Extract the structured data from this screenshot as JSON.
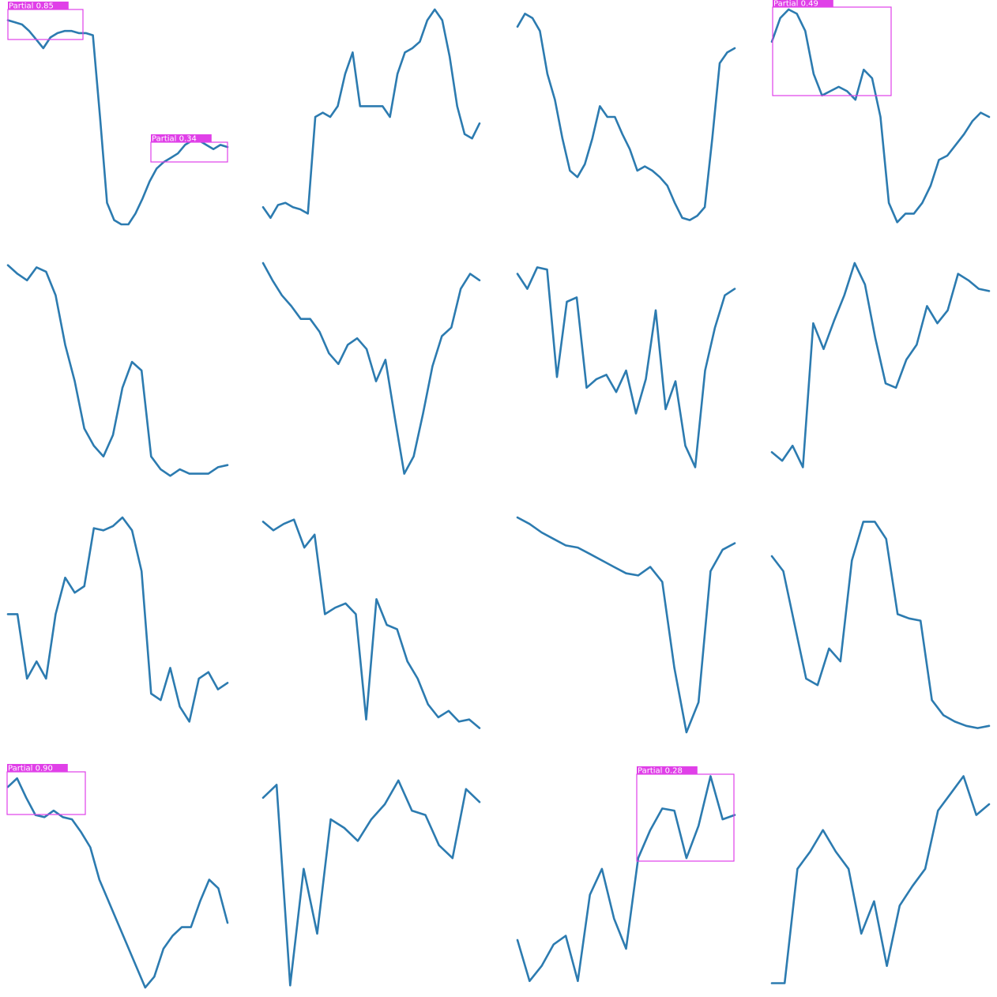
{
  "colors": {
    "series": "#2c7bb0",
    "detection": "#e040e8",
    "background": "#ffffff"
  },
  "chart_data": [
    {
      "type": "line",
      "y": [
        0.95,
        0.94,
        0.93,
        0.9,
        0.86,
        0.82,
        0.87,
        0.89,
        0.9,
        0.9,
        0.89,
        0.89,
        0.88,
        0.5,
        0.1,
        0.02,
        0.0,
        0.0,
        0.05,
        0.12,
        0.2,
        0.26,
        0.29,
        0.31,
        0.33,
        0.37,
        0.39,
        0.39,
        0.37,
        0.35,
        0.37,
        0.36
      ],
      "detections": [
        {
          "label": "Partial  0.85",
          "score": 0.85
        },
        {
          "label": "Partial  0.34",
          "score": 0.34
        }
      ]
    },
    {
      "type": "line",
      "y": [
        0.08,
        0.03,
        0.09,
        0.1,
        0.08,
        0.07,
        0.05,
        0.5,
        0.52,
        0.5,
        0.55,
        0.7,
        0.8,
        0.55,
        0.55,
        0.55,
        0.55,
        0.5,
        0.7,
        0.8,
        0.82,
        0.85,
        0.95,
        1.0,
        0.95,
        0.78,
        0.55,
        0.42,
        0.4,
        0.47
      ]
    },
    {
      "type": "line",
      "y": [
        0.92,
        0.98,
        0.96,
        0.9,
        0.7,
        0.58,
        0.4,
        0.25,
        0.22,
        0.28,
        0.4,
        0.55,
        0.5,
        0.5,
        0.42,
        0.35,
        0.25,
        0.27,
        0.25,
        0.22,
        0.18,
        0.1,
        0.03,
        0.02,
        0.04,
        0.08,
        0.4,
        0.75,
        0.8,
        0.82
      ]
    },
    {
      "type": "line",
      "y": [
        0.85,
        0.96,
        1.0,
        0.98,
        0.9,
        0.7,
        0.6,
        0.62,
        0.64,
        0.62,
        0.58,
        0.72,
        0.68,
        0.5,
        0.1,
        0.01,
        0.05,
        0.05,
        0.1,
        0.18,
        0.3,
        0.32,
        0.37,
        0.42,
        0.48,
        0.52,
        0.5
      ],
      "detections": [
        {
          "label": "Partial  0.49",
          "score": 0.49
        }
      ]
    },
    {
      "type": "line",
      "y": [
        0.99,
        0.95,
        0.92,
        0.98,
        0.96,
        0.85,
        0.62,
        0.45,
        0.23,
        0.15,
        0.1,
        0.2,
        0.42,
        0.54,
        0.5,
        0.1,
        0.04,
        0.01,
        0.04,
        0.02,
        0.02,
        0.02,
        0.05,
        0.06
      ]
    },
    {
      "type": "line",
      "y": [
        1.0,
        0.92,
        0.85,
        0.8,
        0.74,
        0.74,
        0.68,
        0.58,
        0.53,
        0.62,
        0.65,
        0.6,
        0.45,
        0.55,
        0.28,
        0.02,
        0.1,
        0.3,
        0.52,
        0.66,
        0.7,
        0.88,
        0.95,
        0.92
      ]
    },
    {
      "type": "line",
      "y": [
        0.95,
        0.88,
        0.98,
        0.97,
        0.47,
        0.82,
        0.84,
        0.42,
        0.46,
        0.48,
        0.4,
        0.5,
        0.3,
        0.46,
        0.78,
        0.32,
        0.45,
        0.15,
        0.05,
        0.5,
        0.7,
        0.85,
        0.88
      ]
    },
    {
      "type": "line",
      "y": [
        0.12,
        0.08,
        0.15,
        0.05,
        0.72,
        0.6,
        0.73,
        0.85,
        1.0,
        0.9,
        0.65,
        0.44,
        0.42,
        0.55,
        0.62,
        0.8,
        0.72,
        0.78,
        0.95,
        0.92,
        0.88,
        0.87
      ]
    },
    {
      "type": "line",
      "y": [
        0.55,
        0.55,
        0.25,
        0.33,
        0.25,
        0.55,
        0.72,
        0.65,
        0.68,
        0.95,
        0.94,
        0.96,
        1.0,
        0.94,
        0.75,
        0.18,
        0.15,
        0.3,
        0.12,
        0.05,
        0.25,
        0.28,
        0.2,
        0.23
      ]
    },
    {
      "type": "line",
      "y": [
        0.98,
        0.94,
        0.97,
        0.99,
        0.86,
        0.92,
        0.55,
        0.58,
        0.6,
        0.55,
        0.06,
        0.62,
        0.5,
        0.48,
        0.33,
        0.25,
        0.13,
        0.07,
        0.1,
        0.05,
        0.06,
        0.02
      ]
    },
    {
      "type": "line",
      "y": [
        1.0,
        0.97,
        0.93,
        0.9,
        0.87,
        0.86,
        0.83,
        0.8,
        0.77,
        0.74,
        0.73,
        0.77,
        0.7,
        0.3,
        0.0,
        0.14,
        0.75,
        0.85,
        0.88
      ]
    },
    {
      "type": "line",
      "y": [
        0.82,
        0.75,
        0.5,
        0.25,
        0.22,
        0.39,
        0.33,
        0.8,
        0.98,
        0.98,
        0.9,
        0.55,
        0.53,
        0.52,
        0.15,
        0.08,
        0.05,
        0.03,
        0.02,
        0.03
      ]
    },
    {
      "type": "line",
      "y": [
        0.93,
        0.97,
        0.88,
        0.8,
        0.79,
        0.82,
        0.79,
        0.78,
        0.72,
        0.65,
        0.5,
        0.4,
        0.3,
        0.2,
        0.1,
        0.0,
        0.05,
        0.18,
        0.24,
        0.28,
        0.28,
        0.4,
        0.5,
        0.46,
        0.3
      ],
      "detections": [
        {
          "label": "Partial  0.90",
          "score": 0.9
        }
      ]
    },
    {
      "type": "line",
      "y": [
        0.88,
        0.94,
        0.01,
        0.55,
        0.25,
        0.78,
        0.74,
        0.68,
        0.78,
        0.85,
        0.96,
        0.82,
        0.8,
        0.66,
        0.6,
        0.92,
        0.86
      ],
      "detections": []
    },
    {
      "type": "line",
      "y": [
        0.22,
        0.03,
        0.1,
        0.2,
        0.24,
        0.03,
        0.43,
        0.55,
        0.32,
        0.18,
        0.6,
        0.73,
        0.83,
        0.82,
        0.6,
        0.75,
        0.98,
        0.78,
        0.8
      ],
      "detections": [
        {
          "label": "Partial  0.28",
          "score": 0.28
        }
      ]
    },
    {
      "type": "line",
      "y": [
        0.02,
        0.02,
        0.55,
        0.63,
        0.73,
        0.63,
        0.55,
        0.25,
        0.4,
        0.1,
        0.38,
        0.47,
        0.55,
        0.82,
        0.9,
        0.98,
        0.8,
        0.85
      ]
    }
  ]
}
